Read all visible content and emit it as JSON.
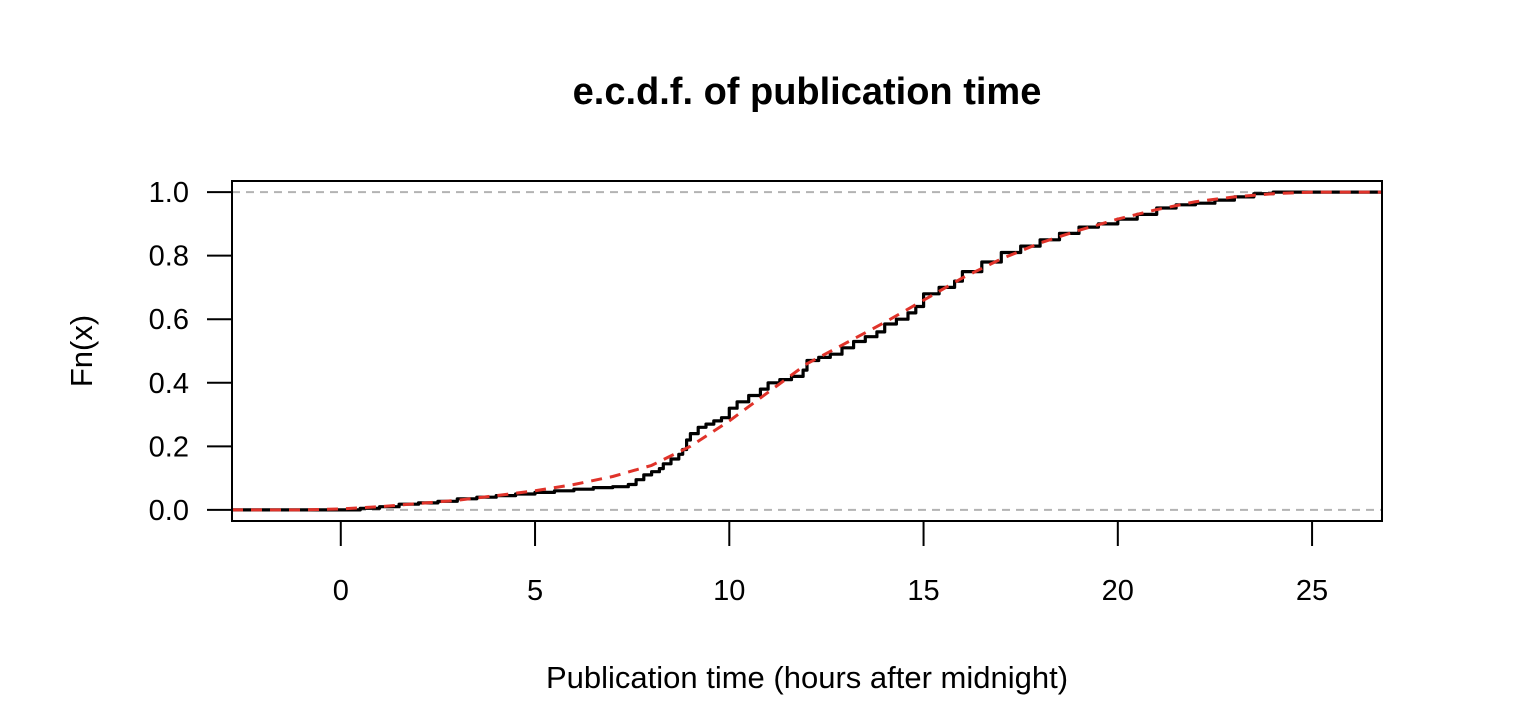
{
  "chart_data": {
    "type": "line",
    "title": "e.c.d.f. of publication time",
    "xlabel": "Publication time (hours after midnight)",
    "ylabel": "Fn(x)",
    "xlim": [
      -2.8,
      26.8
    ],
    "ylim": [
      -0.035,
      1.035
    ],
    "x_ticks": [
      0,
      5,
      10,
      15,
      20,
      25
    ],
    "x_tick_labels": [
      "0",
      "5",
      "10",
      "15",
      "20",
      "25"
    ],
    "y_ticks": [
      0.0,
      0.2,
      0.4,
      0.6,
      0.8,
      1.0
    ],
    "y_tick_labels": [
      "0.0",
      "0.2",
      "0.4",
      "0.6",
      "0.8",
      "1.0"
    ],
    "reference_lines": [
      {
        "y": 0.0,
        "color": "#b3b3b3",
        "style": "dashed"
      },
      {
        "y": 1.0,
        "color": "#b3b3b3",
        "style": "dashed"
      }
    ],
    "series": [
      {
        "color": "#000000",
        "style": "step",
        "x": [
          -2.8,
          -0.5,
          0.5,
          1.0,
          1.5,
          2.0,
          2.5,
          3.0,
          3.5,
          4.0,
          4.5,
          5.0,
          5.5,
          6.0,
          6.5,
          7.0,
          7.4,
          7.6,
          7.8,
          8.0,
          8.2,
          8.3,
          8.5,
          8.7,
          8.8,
          8.9,
          9.0,
          9.2,
          9.4,
          9.6,
          9.8,
          10.0,
          10.2,
          10.5,
          10.8,
          11.0,
          11.3,
          11.6,
          11.9,
          12.0,
          12.3,
          12.6,
          12.9,
          13.2,
          13.5,
          13.8,
          14.0,
          14.3,
          14.6,
          14.8,
          15.0,
          15.4,
          15.8,
          16.0,
          16.5,
          17.0,
          17.5,
          18.0,
          18.5,
          19.0,
          19.5,
          20.0,
          20.5,
          21.0,
          21.5,
          22.0,
          22.5,
          23.0,
          23.5,
          24.0,
          25.0,
          26.8
        ],
        "y": [
          0.0,
          0.0,
          0.005,
          0.01,
          0.018,
          0.022,
          0.027,
          0.035,
          0.04,
          0.045,
          0.05,
          0.055,
          0.06,
          0.065,
          0.07,
          0.073,
          0.08,
          0.095,
          0.11,
          0.12,
          0.13,
          0.145,
          0.16,
          0.175,
          0.19,
          0.22,
          0.24,
          0.26,
          0.27,
          0.28,
          0.29,
          0.32,
          0.34,
          0.36,
          0.38,
          0.4,
          0.41,
          0.42,
          0.44,
          0.47,
          0.48,
          0.49,
          0.51,
          0.53,
          0.545,
          0.56,
          0.585,
          0.6,
          0.62,
          0.64,
          0.68,
          0.7,
          0.72,
          0.75,
          0.78,
          0.81,
          0.83,
          0.85,
          0.87,
          0.89,
          0.9,
          0.915,
          0.93,
          0.95,
          0.96,
          0.965,
          0.975,
          0.985,
          0.995,
          1.0,
          1.0,
          1.0
        ]
      },
      {
        "color": "#e0332a",
        "style": "dashed",
        "x": [
          -2.8,
          -1.0,
          0.0,
          1.0,
          2.0,
          3.0,
          4.0,
          5.0,
          6.0,
          7.0,
          8.0,
          9.0,
          10.0,
          11.0,
          12.0,
          13.0,
          14.0,
          15.0,
          16.0,
          17.0,
          18.0,
          19.0,
          20.0,
          21.0,
          22.0,
          23.0,
          24.0,
          25.0,
          26.8
        ],
        "y": [
          0.0,
          0.0,
          0.003,
          0.01,
          0.02,
          0.03,
          0.045,
          0.06,
          0.08,
          0.105,
          0.14,
          0.2,
          0.28,
          0.37,
          0.46,
          0.525,
          0.59,
          0.66,
          0.73,
          0.79,
          0.84,
          0.88,
          0.915,
          0.945,
          0.97,
          0.985,
          0.995,
          1.0,
          1.0
        ]
      }
    ]
  }
}
